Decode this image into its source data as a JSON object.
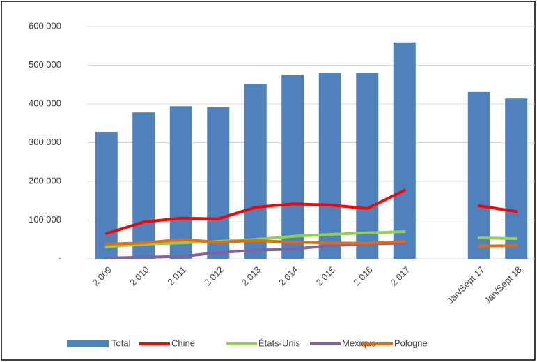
{
  "chart_data": {
    "type": "bar",
    "categories": [
      "2 009",
      "2 010",
      "2 011",
      "2 012",
      "2 013",
      "2 014",
      "2 015",
      "2 016",
      "2 017",
      null,
      "Jan/Sept 17",
      "Jan/Sept 18"
    ],
    "ylim": [
      0,
      600000
    ],
    "yticks": [
      {
        "value": 0,
        "label": "-"
      },
      {
        "value": 100000,
        "label": "100 000"
      },
      {
        "value": 200000,
        "label": "200 000"
      },
      {
        "value": 300000,
        "label": "300 000"
      },
      {
        "value": 400000,
        "label": "400 000"
      },
      {
        "value": 500000,
        "label": "500 000"
      },
      {
        "value": 600000,
        "label": "600 000"
      }
    ],
    "grid": true,
    "legend": "bottom",
    "series": [
      {
        "name": "Total",
        "type": "bar",
        "color": "#4f81bd",
        "values": [
          328000,
          378000,
          394000,
          392000,
          452000,
          475000,
          481000,
          481000,
          559000,
          null,
          431000,
          414000
        ]
      },
      {
        "name": "Chine",
        "type": "line",
        "color": "#ff0000",
        "values": [
          65000,
          95000,
          105000,
          103000,
          133000,
          142000,
          139000,
          130000,
          177000,
          null,
          137000,
          122000
        ]
      },
      {
        "name": "États-Unis",
        "type": "line",
        "color": "#92d050",
        "values": [
          31000,
          38000,
          41000,
          45000,
          50000,
          58000,
          63000,
          67000,
          70000,
          null,
          54000,
          52000
        ]
      },
      {
        "name": "Mexique",
        "type": "line",
        "color": "#8064a2",
        "values": [
          2000,
          4000,
          6000,
          16000,
          22000,
          25000,
          34000,
          38000,
          41000,
          null,
          null,
          null
        ]
      },
      {
        "name": "Pologne",
        "type": "line",
        "color": "#e46c0a",
        "values": [
          38000,
          41000,
          50000,
          43000,
          47000,
          43000,
          41000,
          40000,
          45000,
          null,
          33000,
          34000
        ]
      }
    ]
  }
}
